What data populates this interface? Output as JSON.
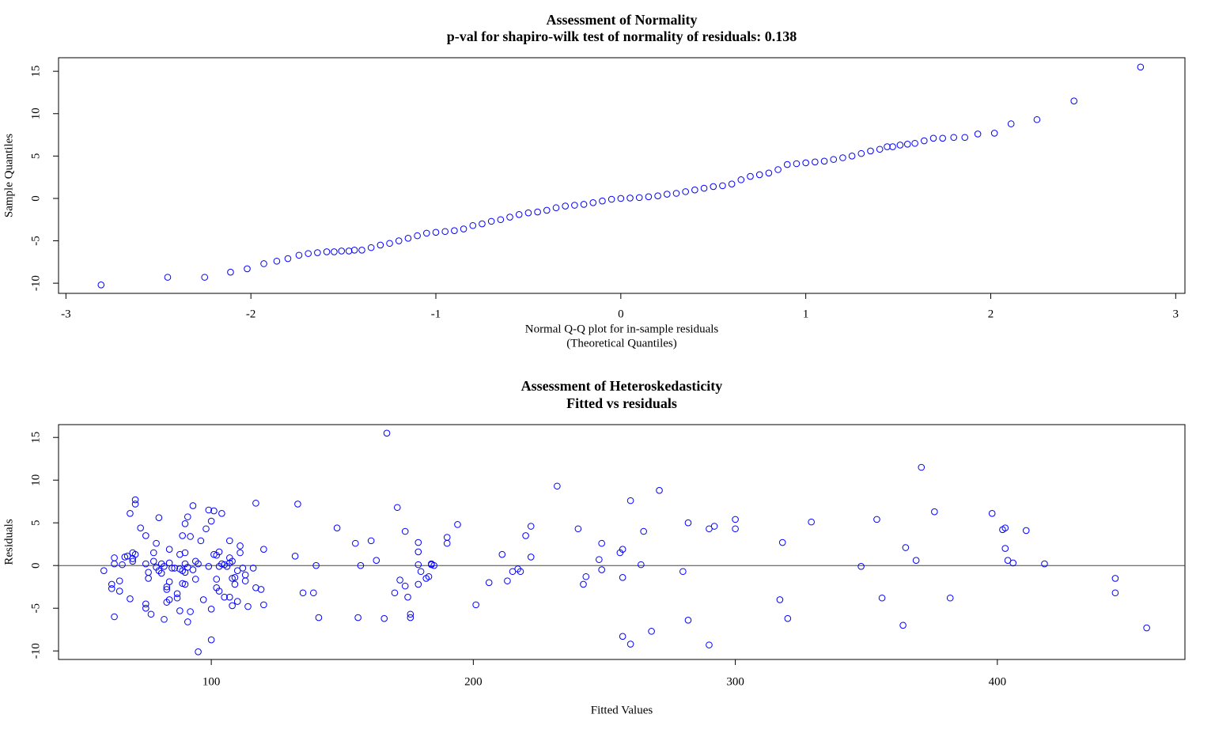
{
  "chart_data": [
    {
      "type": "scatter",
      "title": "Assessment of Normality",
      "subtitle": "p-val for shapiro-wilk test of normality of residuals: 0.138",
      "x_label": [
        "Normal Q-Q plot for in-sample residuals",
        "(Theoretical Quantiles)"
      ],
      "y_label": "Sample Quantiles",
      "color": "#0000ff",
      "x": [
        -2.81,
        -2.45,
        -2.25,
        -2.11,
        -2.02,
        -1.93,
        -1.86,
        -1.8,
        -1.74,
        -1.69,
        -1.64,
        -1.59,
        -1.55,
        -1.51,
        -1.47,
        -1.44,
        -1.4,
        -1.35,
        -1.3,
        -1.25,
        -1.2,
        -1.15,
        -1.1,
        -1.05,
        -1,
        -0.95,
        -0.9,
        -0.85,
        -0.8,
        -0.75,
        -0.7,
        -0.65,
        -0.6,
        -0.55,
        -0.5,
        -0.45,
        -0.4,
        -0.35,
        -0.3,
        -0.25,
        -0.2,
        -0.15,
        -0.1,
        -0.05,
        0,
        0.05,
        0.1,
        0.15,
        0.2,
        0.25,
        0.3,
        0.35,
        0.4,
        0.45,
        0.5,
        0.55,
        0.6,
        0.65,
        0.7,
        0.75,
        0.8,
        0.85,
        0.9,
        0.95,
        1,
        1.05,
        1.1,
        1.15,
        1.2,
        1.25,
        1.3,
        1.35,
        1.4,
        1.44,
        1.47,
        1.51,
        1.55,
        1.59,
        1.64,
        1.69,
        1.74,
        1.8,
        1.86,
        1.93,
        2.02,
        2.11,
        2.25,
        2.45,
        2.81
      ],
      "values": [
        -10.2,
        -9.3,
        -9.3,
        -8.7,
        -8.3,
        -7.7,
        -7.4,
        -7.1,
        -6.7,
        -6.5,
        -6.4,
        -6.3,
        -6.3,
        -6.2,
        -6.2,
        -6.1,
        -6.1,
        -5.8,
        -5.5,
        -5.3,
        -5,
        -4.7,
        -4.4,
        -4.1,
        -4,
        -3.9,
        -3.8,
        -3.6,
        -3.2,
        -3,
        -2.7,
        -2.5,
        -2.2,
        -1.9,
        -1.7,
        -1.6,
        -1.4,
        -1.1,
        -0.9,
        -0.8,
        -0.7,
        -0.5,
        -0.3,
        -0.1,
        0,
        0.05,
        0.1,
        0.2,
        0.3,
        0.5,
        0.6,
        0.8,
        1,
        1.2,
        1.4,
        1.5,
        1.7,
        2.2,
        2.6,
        2.8,
        3,
        3.4,
        4,
        4.1,
        4.2,
        4.3,
        4.4,
        4.6,
        4.8,
        5,
        5.3,
        5.6,
        5.8,
        6.1,
        6.1,
        6.3,
        6.4,
        6.5,
        6.8,
        7.1,
        7.1,
        7.2,
        7.2,
        7.6,
        7.7,
        8.8,
        9.3,
        11.5,
        15.5
      ],
      "xlim": [
        -3.04,
        3.05
      ],
      "ylim": [
        -11.2,
        16.6
      ],
      "xticks": [
        -3,
        -2,
        -1,
        0,
        1,
        2,
        3
      ],
      "yticks": [
        -10,
        -5,
        0,
        5,
        10,
        15
      ]
    },
    {
      "type": "scatter",
      "title": "Assessment of Heteroskedasticity",
      "subtitle": "Fitted vs residuals",
      "x_label": "Fitted Values",
      "y_label": "Residuals",
      "color": "#0000ff",
      "hline": 0,
      "x": [
        59,
        62,
        62,
        63,
        63,
        63,
        65,
        65,
        66,
        67,
        68,
        69,
        69,
        70,
        70,
        70,
        71,
        71,
        71,
        73,
        75,
        75,
        75,
        75,
        76,
        76,
        77,
        78,
        78,
        79,
        79,
        80,
        80,
        81,
        81,
        82,
        82,
        83,
        83,
        83,
        84,
        84,
        84,
        84,
        85,
        86,
        87,
        87,
        88,
        88,
        88,
        89,
        89,
        89,
        90,
        90,
        90,
        90,
        90,
        91,
        91,
        91,
        92,
        92,
        93,
        93,
        94,
        94,
        95,
        95,
        96,
        97,
        98,
        99,
        99,
        100,
        100,
        100,
        101,
        101,
        102,
        102,
        102,
        103,
        103,
        103,
        104,
        104,
        105,
        105,
        106,
        107,
        107,
        107,
        107,
        108,
        108,
        108,
        109,
        109,
        110,
        110,
        111,
        111,
        112,
        113,
        113,
        114,
        116,
        117,
        117,
        119,
        120,
        120,
        132,
        133,
        135,
        139,
        140,
        141,
        148,
        155,
        156,
        157,
        161,
        163,
        166,
        167,
        170,
        171,
        172,
        174,
        174,
        175,
        176,
        176,
        179,
        179,
        179,
        179,
        180,
        182,
        183,
        184,
        184,
        185,
        190,
        190,
        194,
        201,
        206,
        211,
        213,
        215,
        217,
        218,
        220,
        222,
        222,
        232,
        240,
        242,
        243,
        248,
        249,
        249,
        256,
        257,
        257,
        257,
        260,
        260,
        264,
        265,
        268,
        271,
        280,
        282,
        282,
        290,
        290,
        292,
        300,
        300,
        317,
        318,
        320,
        329,
        348,
        354,
        356,
        364,
        365,
        369,
        371,
        376,
        382,
        398,
        402,
        403,
        403,
        404,
        406,
        411,
        418,
        445,
        445,
        457
      ],
      "values": [
        -0.6,
        -2.2,
        -2.7,
        0.9,
        0.2,
        -6,
        -1.8,
        -3,
        0.1,
        1,
        1.1,
        -3.9,
        6.1,
        0.5,
        0.8,
        1.5,
        1.3,
        7.7,
        7.2,
        4.4,
        -5,
        0.2,
        3.5,
        -4.5,
        -0.8,
        -1.5,
        -5.7,
        1.5,
        0.5,
        2.6,
        -0.2,
        5.6,
        -0.6,
        -0.9,
        0.2,
        -6.3,
        -0.1,
        -2.5,
        -2.8,
        -4.3,
        -1.9,
        -4,
        0.3,
        1.9,
        -0.3,
        -0.3,
        -3.3,
        -3.8,
        -0.4,
        1.3,
        -5.3,
        3.5,
        -0.6,
        -2.1,
        -0.8,
        -2.2,
        0.2,
        1.5,
        4.9,
        5.7,
        -0.2,
        -6.6,
        -5.4,
        3.4,
        7,
        -0.5,
        -1.6,
        0.5,
        0.2,
        -10.1,
        2.9,
        -4,
        4.3,
        6.5,
        -0.1,
        -8.7,
        -5.1,
        5.2,
        1.3,
        6.4,
        1.2,
        -1.6,
        -2.6,
        -0.1,
        1.6,
        -3,
        6.1,
        0.2,
        0.1,
        -3.7,
        -0.1,
        -3.7,
        0.9,
        0.3,
        2.9,
        -1.5,
        -4.7,
        0.5,
        -2.2,
        -1.4,
        -4.2,
        -0.6,
        1.5,
        2.3,
        -0.3,
        -1.1,
        -1.8,
        -4.8,
        -0.3,
        7.3,
        -2.6,
        -2.8,
        -4.6,
        1.9,
        1.1,
        7.2,
        -3.2,
        -3.2,
        0,
        -6.1,
        4.4,
        2.6,
        -6.1,
        0,
        2.9,
        0.6,
        -6.2,
        15.5,
        -3.2,
        6.8,
        -1.7,
        4,
        -2.4,
        -3.7,
        -5.7,
        -6.1,
        2.7,
        1.6,
        -2.2,
        0.1,
        -0.7,
        -1.5,
        -1.3,
        0.1,
        0.2,
        0,
        3.3,
        2.6,
        4.8,
        -4.6,
        -2,
        1.3,
        -1.8,
        -0.7,
        -0.4,
        -0.7,
        3.5,
        1,
        4.6,
        9.3,
        4.3,
        -2.2,
        -1.3,
        0.7,
        2.6,
        -0.5,
        1.5,
        -8.3,
        -1.4,
        1.9,
        -9.2,
        7.6,
        0.1,
        4,
        -7.7,
        8.8,
        -0.7,
        5,
        -6.4,
        4.3,
        -9.3,
        4.6,
        5.4,
        4.3,
        -4,
        2.7,
        -6.2,
        5.1,
        -0.1,
        5.4,
        -3.8,
        -7,
        2.1,
        0.6,
        11.5,
        6.3,
        -3.8,
        6.1,
        4.2,
        4.4,
        2,
        0.6,
        0.3,
        4.1,
        0.2,
        -1.5,
        -3.2,
        -7.3
      ],
      "xlim": [
        41.7,
        471.6
      ],
      "ylim": [
        -11,
        16.5
      ],
      "xticks": [
        100,
        200,
        300,
        400
      ],
      "yticks": [
        -10,
        -5,
        0,
        5,
        10,
        15
      ]
    }
  ]
}
